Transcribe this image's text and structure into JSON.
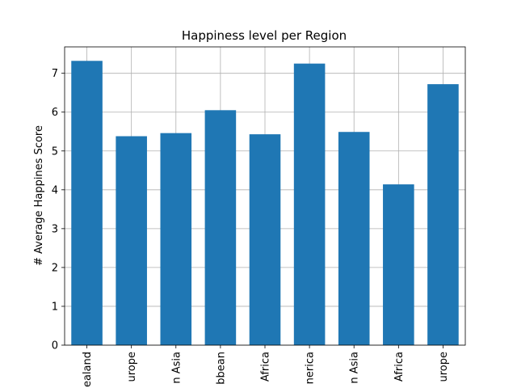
{
  "chart_data": {
    "type": "bar",
    "title": "Happiness level per Region",
    "xlabel": "",
    "ylabel": "# Average Happines Score",
    "categories": [
      "ealand",
      "urope",
      "n Asia",
      "bbean",
      "Africa",
      "nerica",
      "n Asia",
      "Africa",
      "urope"
    ],
    "values": [
      7.32,
      5.38,
      5.46,
      6.05,
      5.43,
      7.25,
      5.49,
      4.14,
      6.72
    ],
    "ylim": [
      0,
      7.68
    ],
    "yticks": [
      0,
      1,
      2,
      3,
      4,
      5,
      6,
      7
    ],
    "grid": true,
    "bar_color": "#1f77b4"
  }
}
